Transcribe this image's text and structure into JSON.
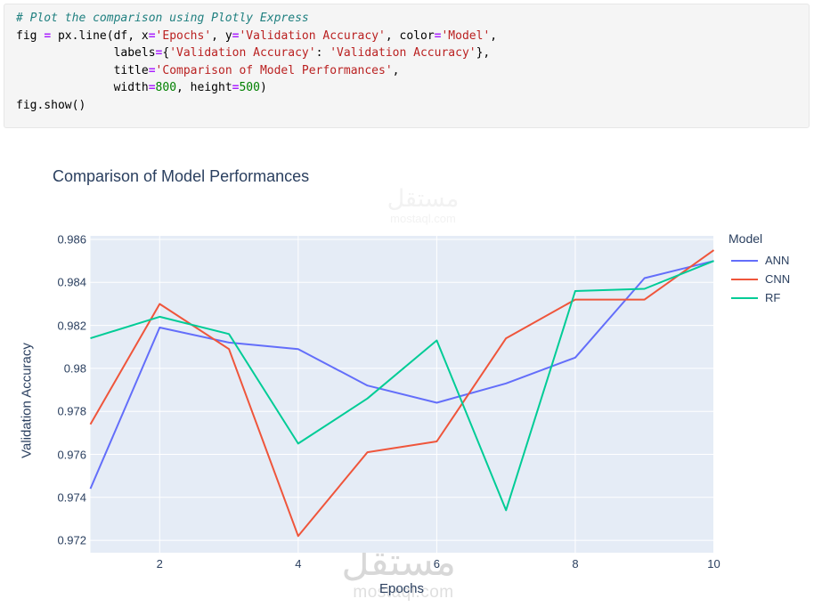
{
  "code_cell": {
    "lines": [
      [
        {
          "t": "# Plot the comparison using Plotly Express",
          "c": "com"
        }
      ],
      [
        {
          "t": "fig ",
          "c": "n"
        },
        {
          "t": "=",
          "c": "op"
        },
        {
          "t": " px.line(df, x",
          "c": "n"
        },
        {
          "t": "=",
          "c": "op"
        },
        {
          "t": "'Epochs'",
          "c": "str"
        },
        {
          "t": ", y",
          "c": "n"
        },
        {
          "t": "=",
          "c": "op"
        },
        {
          "t": "'Validation Accuracy'",
          "c": "str"
        },
        {
          "t": ", color",
          "c": "n"
        },
        {
          "t": "=",
          "c": "op"
        },
        {
          "t": "'Model'",
          "c": "str"
        },
        {
          "t": ",",
          "c": "n"
        }
      ],
      [
        {
          "t": "              labels",
          "c": "n"
        },
        {
          "t": "=",
          "c": "op"
        },
        {
          "t": "{",
          "c": "n"
        },
        {
          "t": "'Validation Accuracy'",
          "c": "str"
        },
        {
          "t": ": ",
          "c": "n"
        },
        {
          "t": "'Validation Accuracy'",
          "c": "str"
        },
        {
          "t": "},",
          "c": "n"
        }
      ],
      [
        {
          "t": "              title",
          "c": "n"
        },
        {
          "t": "=",
          "c": "op"
        },
        {
          "t": "'Comparison of Model Performances'",
          "c": "str"
        },
        {
          "t": ",",
          "c": "n"
        }
      ],
      [
        {
          "t": "              width",
          "c": "n"
        },
        {
          "t": "=",
          "c": "op"
        },
        {
          "t": "800",
          "c": "num"
        },
        {
          "t": ", height",
          "c": "n"
        },
        {
          "t": "=",
          "c": "op"
        },
        {
          "t": "500",
          "c": "num"
        },
        {
          "t": ")",
          "c": "n"
        }
      ],
      [
        {
          "t": "fig.show()",
          "c": "n"
        }
      ]
    ]
  },
  "chart_data": {
    "type": "line",
    "title": "Comparison of Model Performances",
    "xlabel": "Epochs",
    "ylabel": "Validation Accuracy",
    "legend_title": "Model",
    "x": [
      1,
      2,
      3,
      4,
      5,
      6,
      7,
      8,
      9,
      10
    ],
    "series": [
      {
        "name": "ANN",
        "color": "#636EFA",
        "values": [
          0.9744,
          0.9819,
          0.9812,
          0.9809,
          0.9792,
          0.9784,
          0.9793,
          0.9805,
          0.9842,
          0.985
        ]
      },
      {
        "name": "CNN",
        "color": "#EF553B",
        "values": [
          0.9774,
          0.983,
          0.9809,
          0.9722,
          0.9761,
          0.9766,
          0.9814,
          0.9832,
          0.9832,
          0.9855
        ]
      },
      {
        "name": "RF",
        "color": "#00CC96",
        "values": [
          0.9814,
          0.9824,
          0.9816,
          0.9765,
          0.9786,
          0.9813,
          0.9734,
          0.9836,
          0.9837,
          0.985
        ]
      }
    ],
    "xticks": [
      2,
      4,
      6,
      8,
      10
    ],
    "yticks": [
      {
        "v": 0.986,
        "label": "0.986"
      },
      {
        "v": 0.984,
        "label": "0.984"
      },
      {
        "v": 0.982,
        "label": "0.982"
      },
      {
        "v": 0.98,
        "label": "0.98"
      },
      {
        "v": 0.978,
        "label": "0.978"
      },
      {
        "v": 0.976,
        "label": "0.976"
      },
      {
        "v": 0.974,
        "label": "0.974"
      },
      {
        "v": 0.972,
        "label": "0.972"
      }
    ],
    "xlim": [
      1,
      10
    ],
    "ylim": [
      0.9714,
      0.9862
    ],
    "grid": "on",
    "legend_position": "right",
    "plot_bg_color": "#E5ECF6",
    "grid_color": "#FFFFFF",
    "text_color": "#2a3f5f"
  },
  "watermark": {
    "arabic": "مستقل",
    "latin": "mostaql.com"
  }
}
